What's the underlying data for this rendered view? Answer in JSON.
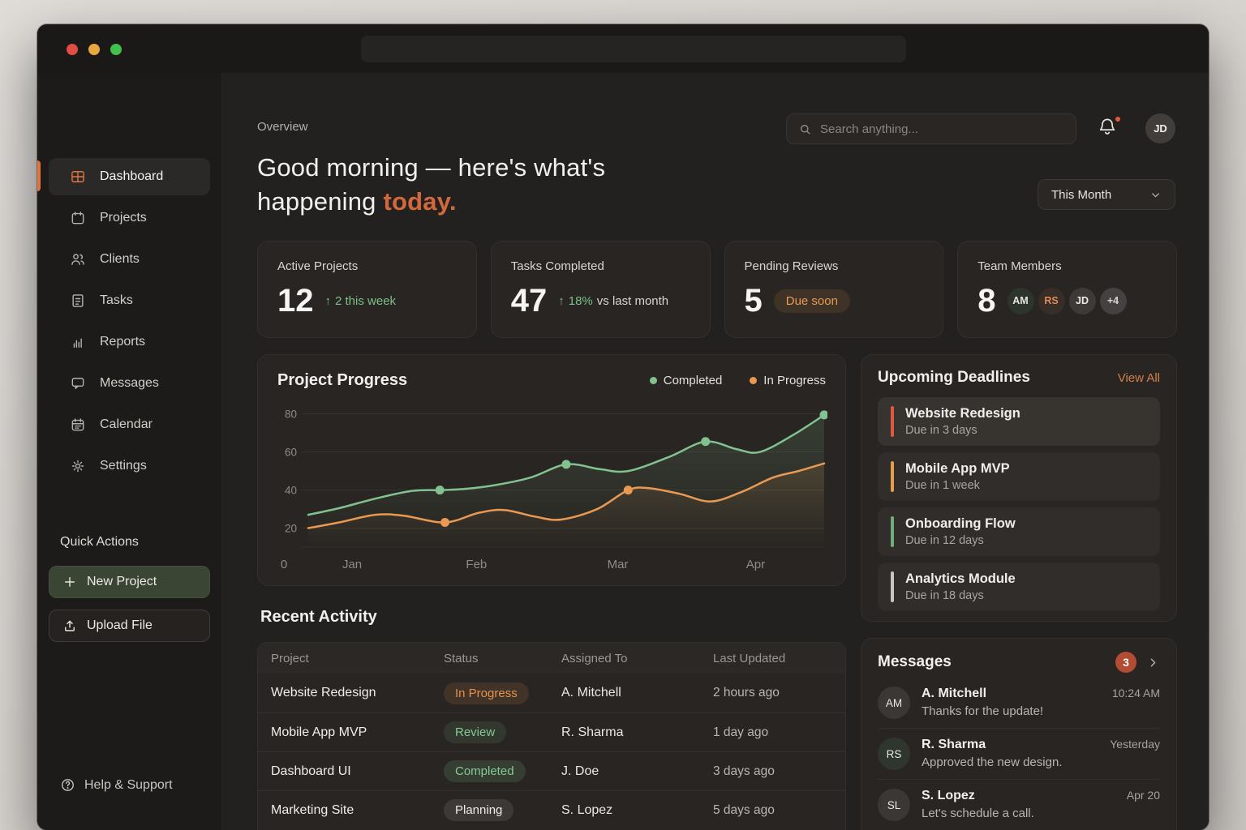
{
  "window": {
    "traffic_lights": [
      "close",
      "minimize",
      "zoom"
    ]
  },
  "sidebar": {
    "items": [
      {
        "icon": "dashboard-icon",
        "label": "Dashboard",
        "active": true
      },
      {
        "icon": "projects-icon",
        "label": "Projects",
        "active": false
      },
      {
        "icon": "clients-icon",
        "label": "Clients",
        "active": false
      },
      {
        "icon": "tasks-icon",
        "label": "Tasks",
        "active": false
      },
      {
        "icon": "reports-icon",
        "label": "Reports",
        "active": false
      },
      {
        "icon": "messages-icon",
        "label": "Messages",
        "active": false
      },
      {
        "icon": "calendar-icon",
        "label": "Calendar",
        "active": false
      },
      {
        "icon": "settings-icon",
        "label": "Settings",
        "active": false
      }
    ],
    "quick_actions_label": "Quick Actions",
    "new_project_label": "New Project",
    "upload_file_label": "Upload File",
    "help_label": "Help & Support"
  },
  "header": {
    "overview": "Overview",
    "search_placeholder": "Search anything...",
    "avatar_initials": "JD",
    "notification_badge": true,
    "greeting": {
      "line1": "Good morning — here's what's",
      "line2": "happening",
      "highlight": "today."
    },
    "period_selector": "This Month"
  },
  "stats": [
    {
      "label": "Active Projects",
      "value": "12",
      "delta_arrow": "↑",
      "delta": "2 this week"
    },
    {
      "label": "Tasks Completed",
      "value": "47",
      "delta_arrow": "↑",
      "delta": "18%",
      "delta_suffix": "vs last month"
    },
    {
      "label": "Pending Reviews",
      "value": "5",
      "badge": "Due soon"
    },
    {
      "label": "Team Members",
      "value": "8",
      "avatars": [
        {
          "initials": "AM",
          "bg": "#2d342c",
          "color": "#e6e4e1"
        },
        {
          "initials": "RS",
          "bg": "#372e27",
          "color": "#de8a58"
        },
        {
          "initials": "JD",
          "bg": "#3d3a37",
          "color": "#eceae8"
        },
        {
          "initials": "+4",
          "bg": "#454140",
          "color": "#d9d6d3"
        }
      ]
    }
  ],
  "chart_data": {
    "type": "line",
    "title": "Project Progress",
    "grid": true,
    "legend_position": "top-right",
    "y_ticks": [
      20,
      40,
      60,
      80
    ],
    "y_range": [
      10,
      85
    ],
    "x_origin_label": "0",
    "x_labels": [
      {
        "text": "Jan",
        "f": 0.085
      },
      {
        "text": "Feb",
        "f": 0.326
      },
      {
        "text": "Mar",
        "f": 0.6
      },
      {
        "text": "Apr",
        "f": 0.867
      }
    ],
    "series": [
      {
        "name": "Completed",
        "color": "#82c28f",
        "points": [
          [
            0,
            27
          ],
          [
            0.06,
            30.5
          ],
          [
            0.13,
            35.5
          ],
          [
            0.2,
            39.5
          ],
          [
            0.255,
            40
          ],
          [
            0.3,
            40.5
          ],
          [
            0.36,
            42.5
          ],
          [
            0.43,
            46.5
          ],
          [
            0.5,
            53.5
          ],
          [
            0.565,
            51
          ],
          [
            0.62,
            50
          ],
          [
            0.7,
            57.5
          ],
          [
            0.77,
            65.5
          ],
          [
            0.83,
            61.5
          ],
          [
            0.875,
            60
          ],
          [
            0.94,
            69
          ],
          [
            1,
            79.5
          ]
        ],
        "markers": [
          [
            0.255,
            40
          ],
          [
            0.5,
            53.5
          ],
          [
            0.77,
            65.5
          ],
          [
            1,
            79.5
          ]
        ]
      },
      {
        "name": "In Progress",
        "color": "#e99952",
        "points": [
          [
            0,
            20
          ],
          [
            0.06,
            23
          ],
          [
            0.13,
            27
          ],
          [
            0.185,
            26.5
          ],
          [
            0.265,
            23
          ],
          [
            0.33,
            28
          ],
          [
            0.38,
            29.5
          ],
          [
            0.44,
            26
          ],
          [
            0.49,
            24.5
          ],
          [
            0.56,
            30
          ],
          [
            0.62,
            40
          ],
          [
            0.66,
            41
          ],
          [
            0.72,
            38
          ],
          [
            0.78,
            34
          ],
          [
            0.84,
            39
          ],
          [
            0.9,
            46.5
          ],
          [
            0.95,
            50
          ],
          [
            1,
            54
          ]
        ],
        "markers": [
          [
            0.265,
            23
          ],
          [
            0.62,
            40
          ]
        ]
      }
    ]
  },
  "deadlines": {
    "title": "Upcoming Deadlines",
    "view_all": "View All",
    "items": [
      {
        "name": "Website Redesign",
        "due": "Due in 3 days",
        "color": "#dd5a41"
      },
      {
        "name": "Mobile App MVP",
        "due": "Due in 1 week",
        "color": "#e2a04c"
      },
      {
        "name": "Onboarding Flow",
        "due": "Due in 12 days",
        "color": "#6fad7c"
      },
      {
        "name": "Analytics Module",
        "due": "Due in 18 days",
        "color": "#c9c6c2"
      }
    ]
  },
  "activity": {
    "title": "Recent Activity",
    "columns": [
      "Project",
      "Status",
      "Assigned To",
      "Last Updated"
    ],
    "rows": [
      {
        "project": "Website Redesign",
        "status": "In Progress",
        "status_type": "in-progress",
        "assignee": "A. Mitchell",
        "updated": "2 hours ago"
      },
      {
        "project": "Mobile App MVP",
        "status": "Review",
        "status_type": "review",
        "assignee": "R. Sharma",
        "updated": "1 day ago"
      },
      {
        "project": "Dashboard UI",
        "status": "Completed",
        "status_type": "completed",
        "assignee": "J. Doe",
        "updated": "3 days ago"
      },
      {
        "project": "Marketing Site",
        "status": "Planning",
        "status_type": "planning",
        "assignee": "S. Lopez",
        "updated": "5 days ago"
      }
    ]
  },
  "messages": {
    "title": "Messages",
    "count": "3",
    "items": [
      {
        "initials": "AM",
        "name": "A. Mitchell",
        "time": "10:24 AM",
        "text": "Thanks for the update!",
        "dot": "#e0704a",
        "avatar_bg": "#3a3734"
      },
      {
        "initials": "RS",
        "name": "R. Sharma",
        "time": "Yesterday",
        "text": "Approved the new design.",
        "dot": "#8fce9b",
        "avatar_bg": "#2f362e"
      },
      {
        "initials": "SL",
        "name": "S. Lopez",
        "time": "Apr 20",
        "text": "Let's schedule a call.",
        "dot": "#e0704a",
        "avatar_bg": "#3a3734"
      }
    ]
  }
}
